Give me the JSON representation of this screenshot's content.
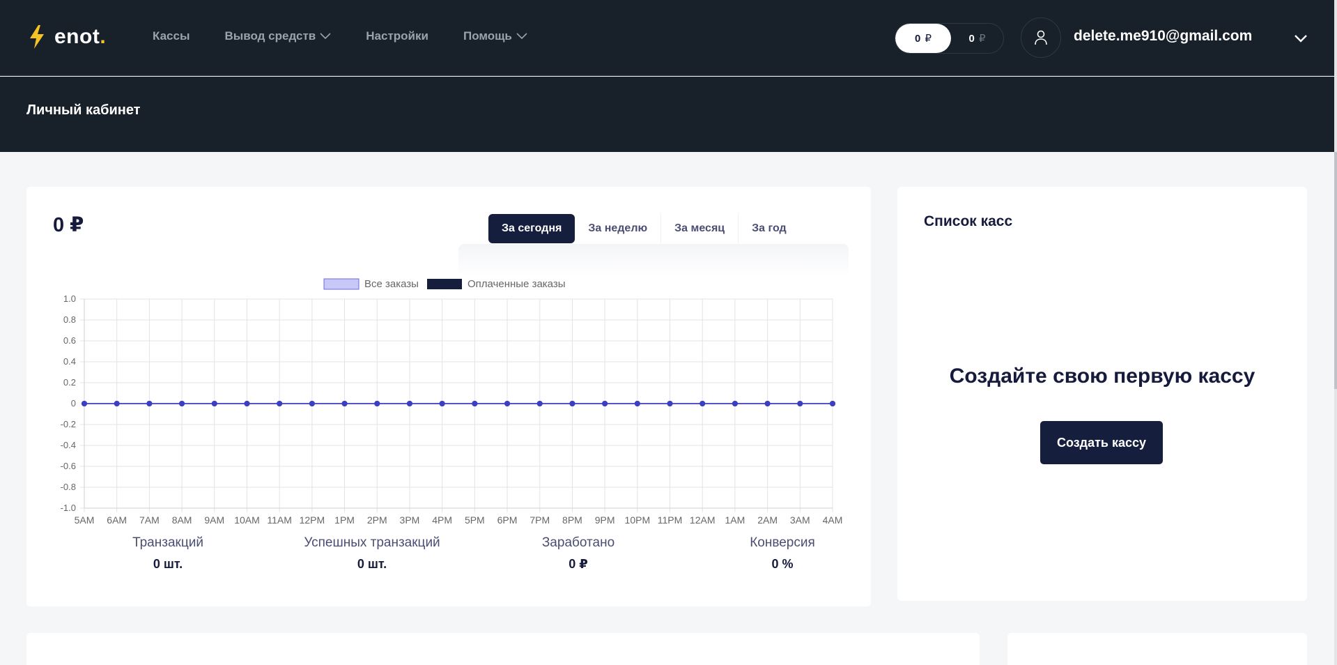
{
  "app": {
    "logo_text": "enot",
    "logo_dot": ".",
    "brand_color": "#f6c325",
    "nav": [
      {
        "label": "Кассы",
        "has_dropdown": false
      },
      {
        "label": "Вывод средств",
        "has_dropdown": true
      },
      {
        "label": "Настройки",
        "has_dropdown": false
      },
      {
        "label": "Помощь",
        "has_dropdown": true
      }
    ],
    "balance": {
      "primary": "0",
      "secondary": "0",
      "currency": "₽"
    },
    "user": {
      "email": "delete.me910@gmail.com"
    }
  },
  "page": {
    "title": "Личный кабинет"
  },
  "stats": {
    "total": "0 ₽",
    "periods": [
      {
        "label": "За сегодня",
        "active": true
      },
      {
        "label": "За неделю",
        "active": false
      },
      {
        "label": "За месяц",
        "active": false
      },
      {
        "label": "За год",
        "active": false
      }
    ],
    "kpis": [
      {
        "label": "Транзакций",
        "value": "0 шт."
      },
      {
        "label": "Успешных транзакций",
        "value": "0 шт."
      },
      {
        "label": "Заработано",
        "value": "0 ₽"
      },
      {
        "label": "Конверсия",
        "value": "0 %"
      }
    ]
  },
  "chart_data": {
    "type": "line",
    "x": [
      "5AM",
      "6AM",
      "7AM",
      "8AM",
      "9AM",
      "10AM",
      "11AM",
      "12PM",
      "1PM",
      "2PM",
      "3PM",
      "4PM",
      "5PM",
      "6PM",
      "7PM",
      "8PM",
      "9PM",
      "10PM",
      "11PM",
      "12AM",
      "1AM",
      "2AM",
      "3AM",
      "4AM"
    ],
    "series": [
      {
        "name": "Все заказы",
        "color": "#c7c8f5",
        "border": "#6b6ed8",
        "values": [
          0,
          0,
          0,
          0,
          0,
          0,
          0,
          0,
          0,
          0,
          0,
          0,
          0,
          0,
          0,
          0,
          0,
          0,
          0,
          0,
          0,
          0,
          0,
          0
        ]
      },
      {
        "name": "Оплаченные заказы",
        "color": "#161e3d",
        "values": [
          0,
          0,
          0,
          0,
          0,
          0,
          0,
          0,
          0,
          0,
          0,
          0,
          0,
          0,
          0,
          0,
          0,
          0,
          0,
          0,
          0,
          0,
          0,
          0
        ]
      }
    ],
    "ylim": [
      -1.0,
      1.0
    ],
    "yticks": [
      "1.0",
      "0.8",
      "0.6",
      "0.4",
      "0.2",
      "0",
      "-0.2",
      "-0.4",
      "-0.6",
      "-0.8",
      "-1.0"
    ],
    "line_color": "#3b3fc4",
    "grid": true,
    "legend": "top-center"
  },
  "cashiers": {
    "title": "Список касс",
    "empty_text": "Создайте свою первую кассу",
    "create_label": "Создать кассу"
  }
}
